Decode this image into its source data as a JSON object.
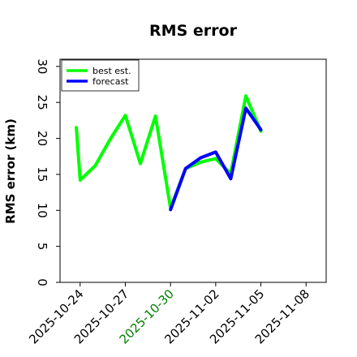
{
  "chart_data": {
    "type": "line",
    "title": "RMS error",
    "ylabel": "RMS error (km)",
    "xlabel": "",
    "ylim": [
      0,
      31
    ],
    "xlim": [
      "2025-10-22T16:00",
      "2025-11-09T08:00"
    ],
    "yticks": [
      0,
      5,
      10,
      15,
      20,
      25,
      30
    ],
    "xticks": [
      {
        "date": "2025-10-24",
        "label": "2025-10-24",
        "color": "#000000"
      },
      {
        "date": "2025-10-27",
        "label": "2025-10-27",
        "color": "#000000"
      },
      {
        "date": "2025-10-30",
        "label": "2025-10-30",
        "color": "#008000"
      },
      {
        "date": "2025-11-02",
        "label": "2025-11-02",
        "color": "#000000"
      },
      {
        "date": "2025-11-05",
        "label": "2025-11-05",
        "color": "#000000"
      },
      {
        "date": "2025-11-08",
        "label": "2025-11-08",
        "color": "#000000"
      }
    ],
    "legend_position": "top-left",
    "grid": false,
    "series": [
      {
        "name": "best est.",
        "color": "#00ff00",
        "x": [
          "2025-10-23T18:00",
          "2025-10-24T00:00",
          "2025-10-25T00:00",
          "2025-10-26T00:00",
          "2025-10-27T00:00",
          "2025-10-28T00:00",
          "2025-10-29T00:00",
          "2025-10-30T00:00",
          "2025-10-31T00:00",
          "2025-11-01T00:00",
          "2025-11-02T00:00",
          "2025-11-03T00:00",
          "2025-11-04T00:00",
          "2025-11-05T00:00"
        ],
        "y": [
          21.5,
          14.2,
          16.2,
          19.9,
          23.2,
          16.5,
          23.1,
          10.3,
          15.8,
          16.7,
          17.2,
          15.1,
          25.9,
          21.0
        ]
      },
      {
        "name": "forecast",
        "color": "#0000ff",
        "x": [
          "2025-10-30T00:00",
          "2025-10-31T00:00",
          "2025-11-01T00:00",
          "2025-11-02T00:00",
          "2025-11-03T00:00",
          "2025-11-04T00:00",
          "2025-11-05T00:00"
        ],
        "y": [
          10.1,
          15.8,
          17.3,
          18.1,
          14.4,
          24.2,
          21.2
        ]
      }
    ]
  }
}
